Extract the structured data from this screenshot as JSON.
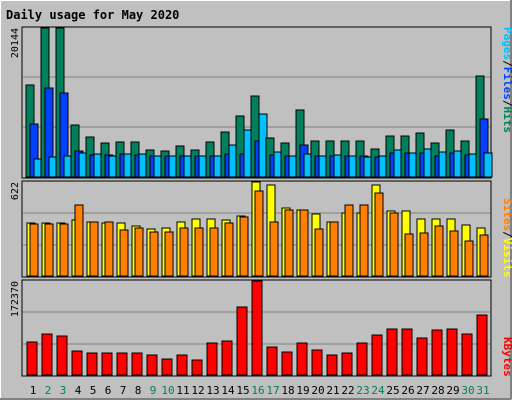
{
  "title": "Daily usage for May 2020",
  "colors": {
    "page_bg": "#c0c0c0",
    "plot_bg": "#c0c0c0",
    "title": "#0000ff",
    "hits": "#00805c",
    "files": "#0040ff",
    "pages": "#00c0ff",
    "visits": "#ffff00",
    "sites": "#ff8000",
    "kbytes": "#ff0000",
    "day_weekday": "#000000",
    "day_weekend": "#00805c"
  },
  "legend": {
    "top": [
      {
        "label": "Pages",
        "color": "#00c0ff"
      },
      {
        "label": "/",
        "color": "#000000"
      },
      {
        "label": "Files",
        "color": "#0040ff"
      },
      {
        "label": "/",
        "color": "#000000"
      },
      {
        "label": "Hits",
        "color": "#00805c"
      }
    ],
    "middle": [
      {
        "label": "Sites",
        "color": "#ff8000"
      },
      {
        "label": "/",
        "color": "#000000"
      },
      {
        "label": "Visits",
        "color": "#ffff00"
      }
    ],
    "bottom": [
      {
        "label": "KBytes",
        "color": "#ff0000"
      }
    ]
  },
  "chart_data": [
    {
      "type": "bar",
      "panel": "hits-files-pages",
      "ymax_label": "20144",
      "ylim": [
        0,
        20144
      ],
      "categories": [
        "1",
        "2",
        "3",
        "4",
        "5",
        "6",
        "7",
        "8",
        "9",
        "10",
        "11",
        "12",
        "13",
        "14",
        "15",
        "16",
        "17",
        "18",
        "19",
        "20",
        "21",
        "22",
        "23",
        "24",
        "25",
        "26",
        "27",
        "28",
        "29",
        "30",
        "31"
      ],
      "series": [
        {
          "name": "Hits",
          "color": "#00805c",
          "values": [
            12500,
            20144,
            20144,
            7000,
            5400,
            4600,
            4700,
            4700,
            3700,
            3500,
            4200,
            3700,
            4700,
            6100,
            8200,
            10900,
            5300,
            4600,
            9100,
            4800,
            4800,
            4800,
            4800,
            3800,
            5500,
            5500,
            5900,
            4600,
            6400,
            4900,
            13600
          ]
        },
        {
          "name": "Files",
          "color": "#0040ff",
          "values": [
            7200,
            12000,
            11400,
            3500,
            3000,
            3000,
            3100,
            3000,
            2800,
            2800,
            2800,
            2800,
            2900,
            3100,
            3100,
            4900,
            3000,
            2800,
            4300,
            2800,
            2800,
            2800,
            2800,
            2700,
            3300,
            3200,
            3200,
            2900,
            3300,
            3000,
            7800
          ]
        },
        {
          "name": "Pages",
          "color": "#00c0ff",
          "values": [
            2400,
            2700,
            2800,
            3200,
            3100,
            2900,
            3100,
            3100,
            2800,
            2800,
            2900,
            2900,
            2800,
            4300,
            6400,
            8500,
            3400,
            2900,
            3100,
            2900,
            3000,
            2800,
            2700,
            2900,
            3700,
            3200,
            3800,
            3400,
            3500,
            3100,
            3300
          ]
        }
      ]
    },
    {
      "type": "bar",
      "panel": "visits-sites",
      "ymax_label": "622",
      "ylim": [
        0,
        622
      ],
      "categories": [
        "1",
        "2",
        "3",
        "4",
        "5",
        "6",
        "7",
        "8",
        "9",
        "10",
        "11",
        "12",
        "13",
        "14",
        "15",
        "16",
        "17",
        "18",
        "19",
        "20",
        "21",
        "22",
        "23",
        "24",
        "25",
        "26",
        "27",
        "28",
        "29",
        "30",
        "31"
      ],
      "series": [
        {
          "name": "Visits",
          "color": "#ffff00",
          "values": [
            348,
            348,
            348,
            370,
            360,
            348,
            348,
            330,
            310,
            320,
            360,
            375,
            375,
            370,
            400,
            622,
            600,
            450,
            440,
            410,
            360,
            420,
            420,
            600,
            430,
            430,
            380,
            380,
            380,
            340,
            320
          ]
        },
        {
          "name": "Sites",
          "color": "#ff8000",
          "values": [
            345,
            343,
            345,
            470,
            360,
            355,
            305,
            320,
            290,
            290,
            320,
            320,
            320,
            350,
            390,
            560,
            360,
            440,
            440,
            310,
            355,
            470,
            470,
            550,
            420,
            280,
            285,
            330,
            300,
            230,
            270
          ]
        }
      ]
    },
    {
      "type": "bar",
      "panel": "kbytes",
      "ymax_label": "172370",
      "ylim": [
        0,
        172370
      ],
      "categories": [
        "1",
        "2",
        "3",
        "4",
        "5",
        "6",
        "7",
        "8",
        "9",
        "10",
        "11",
        "12",
        "13",
        "14",
        "15",
        "16",
        "17",
        "18",
        "19",
        "20",
        "21",
        "22",
        "23",
        "24",
        "25",
        "26",
        "27",
        "28",
        "29",
        "30",
        "31"
      ],
      "series": [
        {
          "name": "KBytes",
          "color": "#ff0000",
          "values": [
            60000,
            76000,
            72000,
            44000,
            40000,
            40000,
            40000,
            40000,
            36000,
            30000,
            36000,
            28000,
            58000,
            63000,
            125000,
            172370,
            52000,
            42000,
            58000,
            45000,
            36000,
            40000,
            59000,
            74000,
            84000,
            84000,
            67000,
            83000,
            85000,
            75000,
            110000
          ]
        }
      ]
    }
  ],
  "days": [
    {
      "label": "1",
      "weekend": false
    },
    {
      "label": "2",
      "weekend": true
    },
    {
      "label": "3",
      "weekend": true
    },
    {
      "label": "4",
      "weekend": false
    },
    {
      "label": "5",
      "weekend": false
    },
    {
      "label": "6",
      "weekend": false
    },
    {
      "label": "7",
      "weekend": false
    },
    {
      "label": "8",
      "weekend": false
    },
    {
      "label": "9",
      "weekend": true
    },
    {
      "label": "10",
      "weekend": true
    },
    {
      "label": "11",
      "weekend": false
    },
    {
      "label": "12",
      "weekend": false
    },
    {
      "label": "13",
      "weekend": false
    },
    {
      "label": "14",
      "weekend": false
    },
    {
      "label": "15",
      "weekend": false
    },
    {
      "label": "16",
      "weekend": true
    },
    {
      "label": "17",
      "weekend": true
    },
    {
      "label": "18",
      "weekend": false
    },
    {
      "label": "19",
      "weekend": false
    },
    {
      "label": "20",
      "weekend": false
    },
    {
      "label": "21",
      "weekend": false
    },
    {
      "label": "22",
      "weekend": false
    },
    {
      "label": "23",
      "weekend": true
    },
    {
      "label": "24",
      "weekend": true
    },
    {
      "label": "25",
      "weekend": false
    },
    {
      "label": "26",
      "weekend": false
    },
    {
      "label": "27",
      "weekend": false
    },
    {
      "label": "28",
      "weekend": false
    },
    {
      "label": "29",
      "weekend": false
    },
    {
      "label": "30",
      "weekend": true
    },
    {
      "label": "31",
      "weekend": true
    }
  ]
}
